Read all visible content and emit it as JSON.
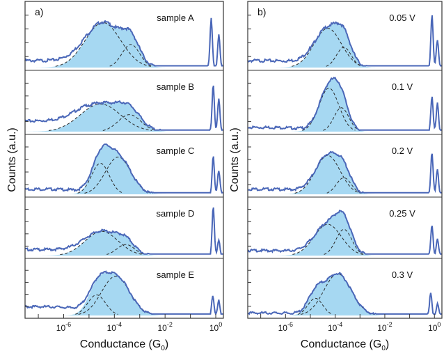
{
  "figure": {
    "panels": [
      {
        "tag": "a)"
      },
      {
        "tag": "b)"
      }
    ]
  },
  "colors": {
    "curve": "#4a67b8",
    "fill": "#a6d8f2",
    "fit": "#2a2a2a",
    "frame": "#333333"
  },
  "chart_data": [
    {
      "type": "area",
      "panel": "a)",
      "xlabel": "Conductance (G",
      "xlabel_sub": "0",
      "xlabel_suffix": ")",
      "ylabel": "Counts (a.u.)",
      "x_scale": "log",
      "xlim": [
        3e-08,
        2.0
      ],
      "x_tick_labels": [
        {
          "value": 1e-06,
          "base": "10",
          "exp": "-6"
        },
        {
          "value": 0.0001,
          "base": "10",
          "exp": "-4"
        },
        {
          "value": 0.01,
          "base": "10",
          "exp": "-2"
        },
        {
          "value": 1,
          "base": "10",
          "exp": "0"
        }
      ],
      "ylim": [
        0,
        1.05
      ],
      "grid": false,
      "subplots": [
        {
          "label": "sample A",
          "peak_log": -4.2,
          "peak_height": 0.88,
          "fit_components": [
            {
              "center_log": -4.45,
              "sigma": 0.7,
              "height": 0.78
            },
            {
              "center_log": -3.35,
              "sigma": 0.35,
              "height": 0.4
            }
          ],
          "tail_level": 0.12,
          "sharp_peaks": [
            {
              "center_log": -0.18,
              "height": 0.85
            },
            {
              "center_log": 0.12,
              "height": 0.55
            }
          ]
        },
        {
          "label": "sample B",
          "peak_log": -4.3,
          "peak_height": 0.62,
          "fit_components": [
            {
              "center_log": -4.55,
              "sigma": 0.8,
              "height": 0.52
            },
            {
              "center_log": -3.4,
              "sigma": 0.45,
              "height": 0.32
            }
          ],
          "tail_level": 0.2,
          "sharp_peaks": [
            {
              "center_log": -0.1,
              "height": 0.9
            },
            {
              "center_log": 0.12,
              "height": 0.6
            }
          ]
        },
        {
          "label": "sample C",
          "peak_log": -4.0,
          "peak_height": 0.9,
          "fit_components": [
            {
              "center_log": -4.55,
              "sigma": 0.35,
              "height": 0.6
            },
            {
              "center_log": -3.85,
              "sigma": 0.5,
              "height": 0.72
            }
          ],
          "tail_level": 0.1,
          "sharp_peaks": [
            {
              "center_log": -0.1,
              "height": 0.75
            },
            {
              "center_log": 0.12,
              "height": 0.45
            }
          ]
        },
        {
          "label": "sample D",
          "peak_log": -4.3,
          "peak_height": 0.55,
          "fit_components": [
            {
              "center_log": -4.5,
              "sigma": 0.65,
              "height": 0.48
            },
            {
              "center_log": -3.55,
              "sigma": 0.35,
              "height": 0.22
            }
          ],
          "tail_level": 0.12,
          "sharp_peaks": [
            {
              "center_log": -0.1,
              "height": 0.98
            },
            {
              "center_log": 0.12,
              "height": 0.3
            }
          ]
        },
        {
          "label": "sample E",
          "peak_log": -4.0,
          "peak_height": 0.9,
          "fit_components": [
            {
              "center_log": -4.7,
              "sigma": 0.35,
              "height": 0.42
            },
            {
              "center_log": -3.95,
              "sigma": 0.55,
              "height": 0.8
            }
          ],
          "tail_level": 0.18,
          "sharp_peaks": [
            {
              "center_log": -0.12,
              "height": 0.4
            },
            {
              "center_log": 0.12,
              "height": 0.3
            }
          ]
        }
      ]
    },
    {
      "type": "area",
      "panel": "b)",
      "xlabel": "Conductance (G",
      "xlabel_sub": "0",
      "xlabel_suffix": ")",
      "ylabel": "Counts (a.u.)",
      "x_scale": "log",
      "xlim": [
        3e-08,
        2.0
      ],
      "x_tick_labels": [
        {
          "value": 1e-06,
          "base": "10",
          "exp": "-6"
        },
        {
          "value": 0.0001,
          "base": "10",
          "exp": "-4"
        },
        {
          "value": 0.01,
          "base": "10",
          "exp": "-2"
        },
        {
          "value": 1,
          "base": "10",
          "exp": "0"
        }
      ],
      "ylim": [
        0,
        1.05
      ],
      "grid": false,
      "subplots": [
        {
          "label": "0.05 V",
          "peak_log": -4.2,
          "peak_height": 0.75,
          "fit_components": [
            {
              "center_log": -4.3,
              "sigma": 0.55,
              "height": 0.68
            },
            {
              "center_log": -3.65,
              "sigma": 0.3,
              "height": 0.35
            }
          ],
          "tail_level": 0.12,
          "sharp_peaks": [
            {
              "center_log": -0.1,
              "height": 0.9
            },
            {
              "center_log": 0.12,
              "height": 0.5
            }
          ]
        },
        {
          "label": "0.1 V",
          "peak_log": -4.2,
          "peak_height": 0.95,
          "fit_components": [
            {
              "center_log": -4.25,
              "sigma": 0.4,
              "height": 0.82
            },
            {
              "center_log": -3.75,
              "sigma": 0.3,
              "height": 0.45
            }
          ],
          "tail_level": 0.08,
          "sharp_peaks": [
            {
              "center_log": -0.1,
              "height": 0.65
            },
            {
              "center_log": 0.12,
              "height": 0.55
            }
          ]
        },
        {
          "label": "0.2 V",
          "peak_log": -4.2,
          "peak_height": 0.85,
          "fit_components": [
            {
              "center_log": -4.3,
              "sigma": 0.5,
              "height": 0.75
            },
            {
              "center_log": -3.65,
              "sigma": 0.3,
              "height": 0.32
            }
          ],
          "tail_level": 0.1,
          "sharp_peaks": [
            {
              "center_log": -0.1,
              "height": 0.8
            },
            {
              "center_log": 0.12,
              "height": 0.5
            }
          ]
        },
        {
          "label": "0.25 V",
          "peak_log": -3.9,
          "peak_height": 0.85,
          "fit_components": [
            {
              "center_log": -4.3,
              "sigma": 0.55,
              "height": 0.62
            },
            {
              "center_log": -3.65,
              "sigma": 0.32,
              "height": 0.52
            }
          ],
          "tail_level": 0.1,
          "sharp_peaks": [
            {
              "center_log": -0.1,
              "height": 0.6
            },
            {
              "center_log": 0.12,
              "height": 0.35
            }
          ]
        },
        {
          "label": "0.3 V",
          "peak_log": -3.9,
          "peak_height": 0.9,
          "fit_components": [
            {
              "center_log": -4.8,
              "sigma": 0.3,
              "height": 0.35
            },
            {
              "center_log": -3.9,
              "sigma": 0.55,
              "height": 0.85
            }
          ],
          "tail_level": 0.05,
          "sharp_peaks": [
            {
              "center_log": -0.15,
              "height": 0.45
            },
            {
              "center_log": 0.12,
              "height": 0.25
            }
          ]
        }
      ]
    }
  ]
}
